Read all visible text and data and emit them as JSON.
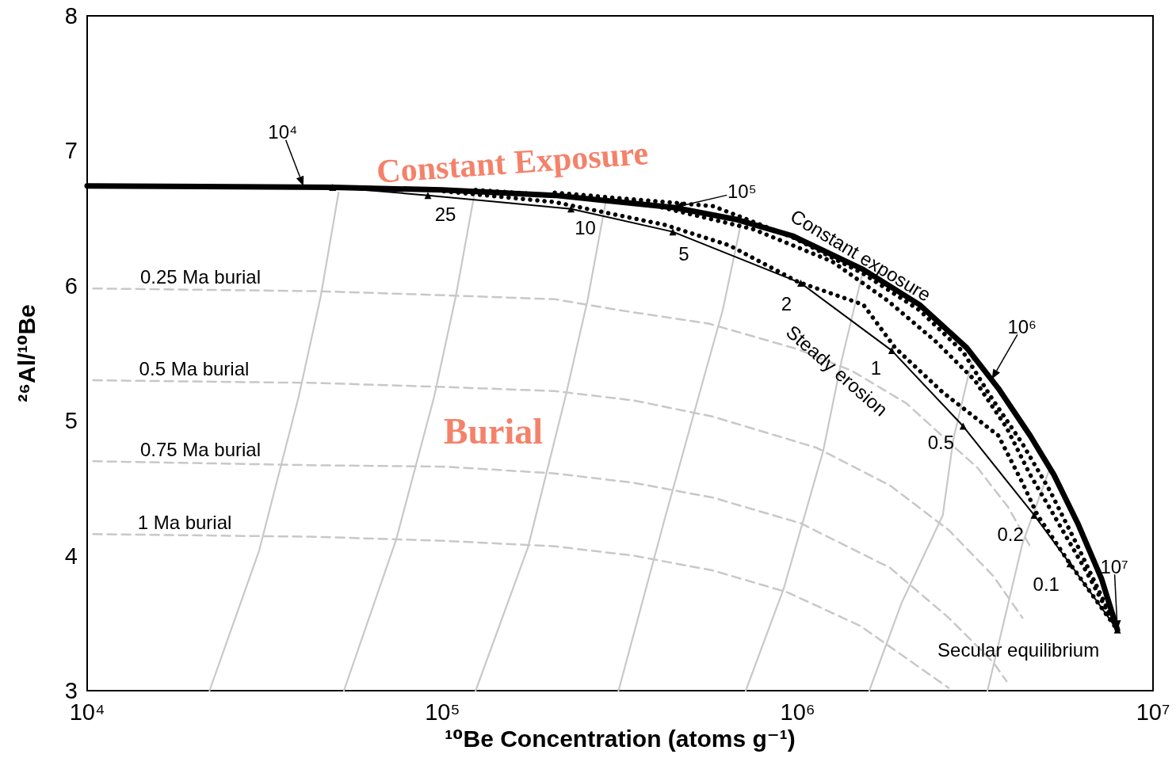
{
  "chart_data": {
    "type": "line",
    "xlabel": "¹⁰Be Concentration (atoms g⁻¹)",
    "ylabel": "²⁶Al/¹⁰Be",
    "log": "x",
    "xlim": [
      10000,
      10000000
    ],
    "xticks": [
      {
        "value": 10000,
        "label": "10⁴"
      },
      {
        "value": 100000,
        "label": "10⁵"
      },
      {
        "value": 1000000,
        "label": "10⁶"
      },
      {
        "value": 10000000,
        "label": "10⁷"
      }
    ],
    "ylim": [
      3,
      8
    ],
    "yticks": [
      3,
      4,
      5,
      6,
      7,
      8
    ],
    "grid": false,
    "series": [
      {
        "color": "#c8c8c8",
        "line_style": "solid",
        "marker": "none",
        "x": [
          51000,
          45500,
          39400,
          30500,
          22100
        ],
        "values": [
          6.69,
          5.93,
          5.18,
          4.04,
          3.0
        ]
      },
      {
        "color": "#c8c8c8",
        "line_style": "solid",
        "marker": "none",
        "x": [
          123000,
          109000,
          94800,
          74100,
          52800
        ],
        "values": [
          6.68,
          5.92,
          5.18,
          4.12,
          3.0
        ]
      },
      {
        "color": "#c8c8c8",
        "line_style": "solid",
        "marker": "none",
        "x": [
          288000,
          256000,
          223000,
          174000,
          124000
        ],
        "values": [
          6.62,
          5.89,
          5.2,
          4.06,
          3.0
        ]
      },
      {
        "color": "#c8c8c8",
        "line_style": "solid",
        "marker": "none",
        "x": [
          692000,
          615000,
          547000,
          425000,
          313000
        ],
        "values": [
          6.46,
          5.82,
          5.34,
          4.3,
          3.0
        ]
      },
      {
        "color": "#c8c8c8",
        "line_style": "solid",
        "marker": "none",
        "x": [
          1530000,
          1330000,
          1180000,
          914000,
          714000
        ],
        "values": [
          6.12,
          5.45,
          4.78,
          3.76,
          3.0
        ]
      },
      {
        "color": "#c8c8c8",
        "line_style": "solid",
        "marker": "none",
        "x": [
          3120000,
          2740000,
          2560000,
          1960000,
          1590000
        ],
        "values": [
          5.49,
          4.86,
          4.3,
          3.65,
          3.0
        ]
      },
      {
        "color": "#c8c8c8",
        "line_style": "solid",
        "marker": "none",
        "x": [
          5110000,
          4290000,
          3420000
        ],
        "values": [
          4.64,
          4.09,
          3.0
        ]
      },
      {
        "color": "#c8c8c8",
        "line_style": "dashed",
        "marker": "none",
        "x": [
          10400,
          44400,
          101000,
          207000,
          313000,
          561000,
          1000000,
          1420000,
          2020000,
          2670000,
          3210000,
          3910000,
          4510000
        ],
        "values": [
          5.98,
          5.96,
          5.93,
          5.9,
          5.82,
          5.72,
          5.53,
          5.37,
          5.13,
          4.84,
          4.65,
          4.36,
          4.07
        ]
      },
      {
        "color": "#c8c8c8",
        "line_style": "dashed",
        "marker": "none",
        "x": [
          10400,
          44400,
          101000,
          207000,
          346000,
          578000,
          1130000,
          1820000,
          2660000,
          3550000,
          4290000
        ],
        "values": [
          5.3,
          5.28,
          5.25,
          5.22,
          5.15,
          5.03,
          4.8,
          4.52,
          4.19,
          3.85,
          3.54
        ]
      },
      {
        "color": "#c8c8c8",
        "line_style": "dashed",
        "marker": "none",
        "x": [
          10400,
          44400,
          101000,
          207000,
          346000,
          578000,
          1020000,
          1820000,
          2660000,
          3550000,
          3870000
        ],
        "values": [
          4.7,
          4.67,
          4.66,
          4.61,
          4.54,
          4.43,
          4.24,
          3.91,
          3.54,
          3.21,
          3.07
        ]
      },
      {
        "color": "#c8c8c8",
        "line_style": "dashed",
        "marker": "none",
        "x": [
          10400,
          44400,
          101000,
          207000,
          346000,
          578000,
          933000,
          1500000,
          2660000
        ],
        "values": [
          4.16,
          4.14,
          4.11,
          4.07,
          4.0,
          3.89,
          3.73,
          3.48,
          3.02
        ]
      },
      {
        "color": "#000000",
        "line_style": "dotted",
        "marker": "none",
        "x": [
          101000,
          207000,
          425000,
          641000,
          1000000,
          1530000,
          1880000,
          2560000,
          3670000,
          4290000,
          4730000,
          5840000,
          7940000
        ],
        "values": [
          6.7,
          6.62,
          6.45,
          6.3,
          6.03,
          5.86,
          5.54,
          5.21,
          4.89,
          4.54,
          4.3,
          3.94,
          3.45
        ]
      },
      {
        "color": "#000000",
        "line_style": "dotted",
        "marker": "none",
        "x": [
          124000,
          346000,
          748000,
          1250000,
          1790000,
          2440000,
          3150000,
          3870000,
          4510000,
          5260000,
          6470000,
          7940000
        ],
        "values": [
          6.71,
          6.63,
          6.42,
          6.18,
          5.89,
          5.59,
          5.3,
          4.95,
          4.6,
          4.3,
          3.89,
          3.45
        ]
      },
      {
        "color": "#000000",
        "line_style": "dotted",
        "marker": "none",
        "x": [
          207000,
          578000,
          966000,
          1530000,
          2200000,
          2920000,
          3490000,
          4290000,
          5130000,
          6140000,
          7940000
        ],
        "values": [
          6.69,
          6.59,
          6.36,
          6.09,
          5.82,
          5.51,
          5.18,
          4.83,
          4.48,
          4.07,
          3.45
        ]
      },
      {
        "color": "#000000",
        "line_style": "solid",
        "marker": "triangle",
        "x": [
          49100,
          91000,
          230000,
          445000,
          1020000,
          1840000,
          2920000,
          4630000,
          5840000,
          7940000
        ],
        "values": [
          6.73,
          6.67,
          6.57,
          6.4,
          6.02,
          5.52,
          4.96,
          4.3,
          3.94,
          3.45
        ]
      },
      {
        "color": "#000000",
        "line_style": "solid",
        "marker": "none",
        "x": [
          10000,
          49000,
          100000,
          207000,
          448000,
          675000,
          966000,
          1530000,
          2200000,
          2990000,
          3670000,
          4510000,
          5260000,
          6140000,
          7160000,
          7940000
        ],
        "values": [
          6.74,
          6.73,
          6.71,
          6.67,
          6.58,
          6.49,
          6.37,
          6.12,
          5.86,
          5.54,
          5.24,
          4.89,
          4.6,
          4.24,
          3.83,
          3.45
        ]
      }
    ],
    "annotations": [
      "Constant Exposure",
      "Burial",
      {
        "text": "10⁴",
        "x": 40600,
        "y": 6.74
      },
      {
        "text": "10⁵",
        "x": 448000,
        "y": 6.58
      },
      {
        "text": "10⁶",
        "x": 3520000,
        "y": 5.31
      },
      {
        "text": "10⁷",
        "x": 7940000,
        "y": 3.45
      },
      {
        "text": "Constant exposure",
        "x": 1520000,
        "y": 6.12
      },
      {
        "text": "Steady erosion",
        "x": 1290000,
        "y": 5.83
      },
      {
        "text": "25",
        "x": 91000,
        "y": 6.67
      },
      {
        "text": "10",
        "x": 230000,
        "y": 6.57
      },
      {
        "text": "5",
        "x": 445000,
        "y": 6.4
      },
      {
        "text": "2",
        "x": 1020000,
        "y": 6.02
      },
      {
        "text": "1",
        "x": 1840000,
        "y": 5.52
      },
      {
        "text": "0.5",
        "x": 2920000,
        "y": 4.96
      },
      {
        "text": "0.2",
        "x": 4630000,
        "y": 4.3
      },
      {
        "text": "0.1",
        "x": 5840000,
        "y": 3.94
      },
      {
        "text": "Secular equilibrium",
        "x": 7940000,
        "y": 3.45
      },
      {
        "text": "0.25 Ma burial",
        "x": 13400,
        "y": 5.98
      },
      {
        "text": "0.5 Ma burial",
        "x": 13400,
        "y": 5.3
      },
      {
        "text": "0.75 Ma burial",
        "x": 13400,
        "y": 4.7
      },
      {
        "text": "1 Ma burial",
        "x": 13400,
        "y": 4.16
      }
    ]
  }
}
